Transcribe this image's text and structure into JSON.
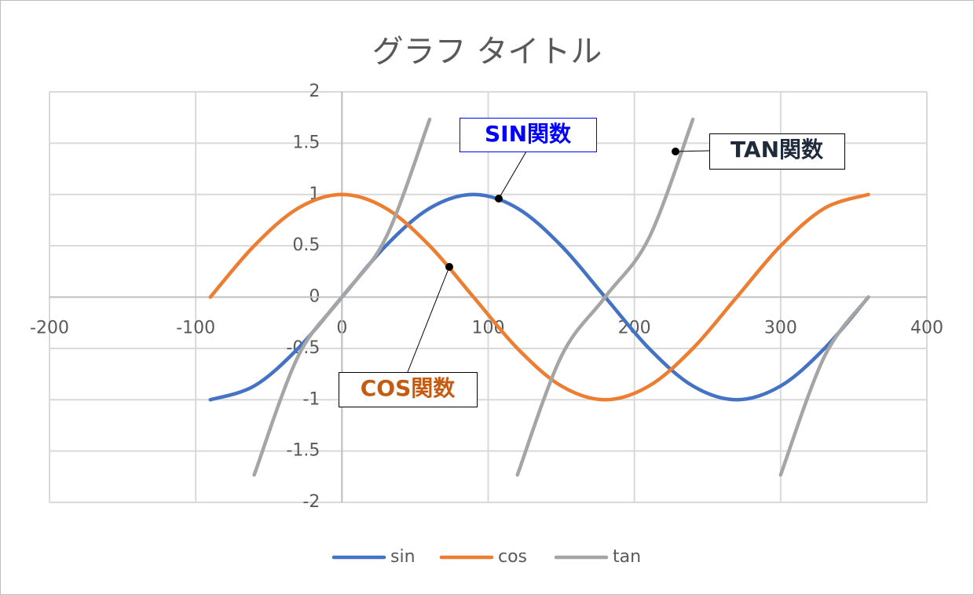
{
  "chart_data": {
    "type": "line",
    "title": "グラフ タイトル",
    "x": [
      -90,
      -60,
      -30,
      0,
      30,
      60,
      90,
      120,
      150,
      180,
      210,
      240,
      270,
      300,
      330,
      360
    ],
    "series": [
      {
        "name": "sin",
        "color": "#4472c4",
        "values": [
          -1,
          -0.866,
          -0.5,
          0,
          0.5,
          0.866,
          1,
          0.866,
          0.5,
          0,
          -0.5,
          -0.866,
          -1,
          -0.866,
          -0.5,
          0
        ]
      },
      {
        "name": "cos",
        "color": "#ed7d31",
        "values": [
          0,
          0.5,
          0.866,
          1,
          0.866,
          0.5,
          0,
          -0.5,
          -0.866,
          -1,
          -0.866,
          -0.5,
          0,
          0.5,
          0.866,
          1
        ]
      },
      {
        "name": "tan",
        "color": "#a5a5a5",
        "values": [
          null,
          -1.732,
          -0.577,
          0,
          0.577,
          1.732,
          null,
          -1.732,
          -0.577,
          0,
          0.577,
          1.732,
          null,
          -1.732,
          -0.577,
          0
        ]
      }
    ],
    "xlim": [
      -200,
      400
    ],
    "xticks": [
      -200,
      -100,
      0,
      100,
      200,
      300,
      400
    ],
    "ylim": [
      -2,
      2
    ],
    "yticks": [
      -2,
      -1.5,
      -1,
      -0.5,
      0,
      0.5,
      1,
      1.5,
      2
    ],
    "grid": true,
    "smooth": true,
    "legend": "bottom",
    "annotations": [
      "SIN関数",
      "COS関数",
      "TAN関数"
    ]
  }
}
